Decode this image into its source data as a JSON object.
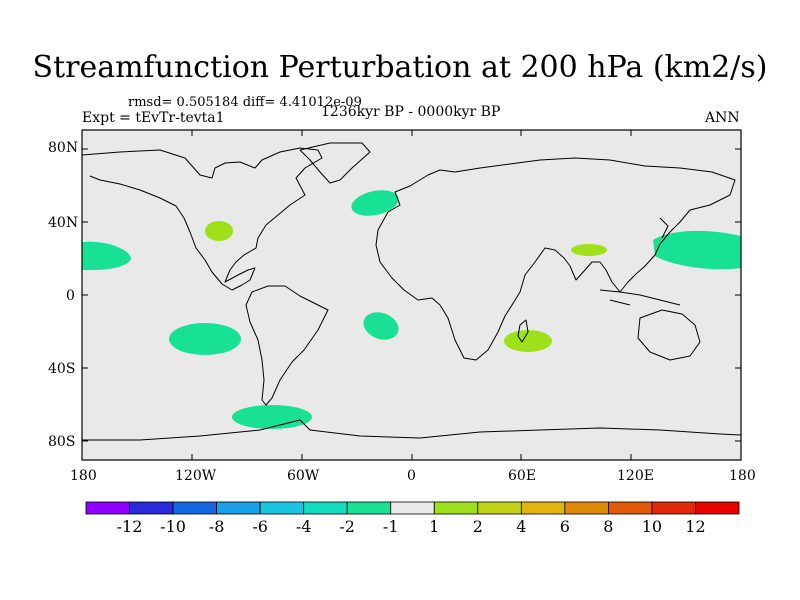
{
  "title": "Streamfunction Perturbation at 200 hPa (km2/s)",
  "stats_line": "rmsd= 0.505184 diff= 4.41012e-09",
  "experiment": "Expt = tEvTr-tevta1",
  "period": "1236kyr BP - 0000kyr BP",
  "season": "ANN",
  "lat_ticks": [
    "80N",
    "40N",
    "0",
    "40S",
    "80S"
  ],
  "lon_ticks": [
    "180",
    "120W",
    "60W",
    "0",
    "60E",
    "120E",
    "180"
  ],
  "legend": {
    "colors": [
      "#8f00ff",
      "#2a2ad9",
      "#1466e0",
      "#1aa0e6",
      "#18c6e2",
      "#14dcc0",
      "#18e094",
      "#e9e9e9",
      "#9ee01a",
      "#c2d418",
      "#e2b410",
      "#e08a08",
      "#e05a08",
      "#e02a08",
      "#e60000"
    ],
    "labels": [
      "-12",
      "-10",
      "-8",
      "-6",
      "-4",
      "-2",
      "-1",
      "1",
      "2",
      "4",
      "6",
      "8",
      "10",
      "12"
    ]
  },
  "anomalies": [
    {
      "name": "north-pacific-east",
      "color": "#18e094"
    },
    {
      "name": "north-atlantic",
      "color": "#18e094"
    },
    {
      "name": "us-southwest",
      "color": "#9ee01a"
    },
    {
      "name": "south-pacific",
      "color": "#18e094"
    },
    {
      "name": "south-atlantic",
      "color": "#18e094"
    },
    {
      "name": "indian-ocean",
      "color": "#9ee01a"
    },
    {
      "name": "tibet",
      "color": "#9ee01a"
    },
    {
      "name": "north-pacific-west",
      "color": "#18e094"
    },
    {
      "name": "drake-passage",
      "color": "#18e094"
    }
  ]
}
